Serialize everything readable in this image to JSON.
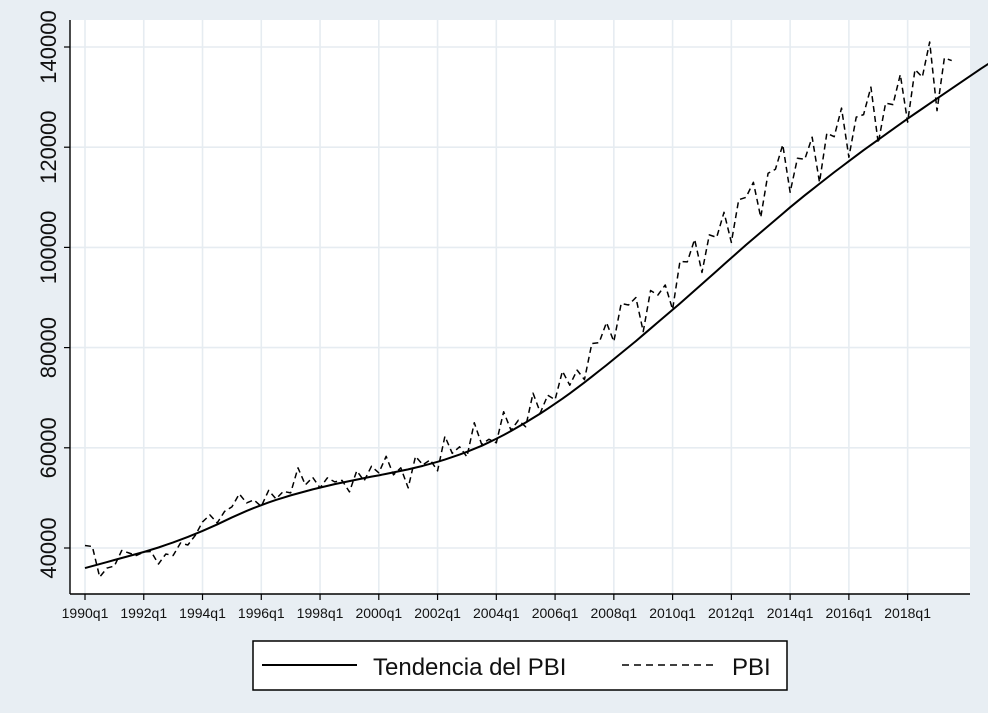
{
  "chart_data": {
    "type": "line",
    "title": "",
    "xlabel": "",
    "ylabel": "",
    "x_tick_labels": [
      "1990q1",
      "1992q1",
      "1994q1",
      "1996q1",
      "1998q1",
      "2000q1",
      "2002q1",
      "2004q1",
      "2006q1",
      "2008q1",
      "2010q1",
      "2012q1",
      "2014q1",
      "2016q1",
      "2018q1"
    ],
    "y_tick_labels": [
      "40000",
      "60000",
      "80000",
      "100000",
      "120000",
      "140000"
    ],
    "y_ticks": [
      40000,
      60000,
      80000,
      100000,
      120000,
      140000
    ],
    "ylim": [
      33000,
      141500
    ],
    "x_start": "1990q1",
    "x_end": "2019q2",
    "grid": true,
    "legend_position": "bottom",
    "series": [
      {
        "name": "Tendencia del PBI",
        "style": "solid",
        "color": "#000000",
        "values": [
          36000,
          36400,
          36800,
          37200,
          37600,
          38000,
          38400,
          38800,
          39200,
          39650,
          40100,
          40600,
          41100,
          41650,
          42200,
          42800,
          43400,
          44050,
          44700,
          45400,
          46100,
          46750,
          47400,
          48000,
          48550,
          49100,
          49600,
          50050,
          50500,
          50900,
          51300,
          51700,
          52050,
          52400,
          52750,
          53050,
          53350,
          53650,
          53950,
          54250,
          54500,
          54800,
          55100,
          55400,
          55700,
          56050,
          56400,
          56800,
          57200,
          57650,
          58150,
          58650,
          59200,
          59800,
          60400,
          61100,
          61800,
          62550,
          63350,
          64200,
          65050,
          65950,
          66850,
          67800,
          68800,
          69800,
          70850,
          71950,
          73050,
          74200,
          75350,
          76500,
          77700,
          78900,
          80100,
          81300,
          82550,
          83800,
          85050,
          86300,
          87550,
          88800,
          90100,
          91400,
          92700,
          94000,
          95300,
          96600,
          97900,
          99200,
          100500,
          101750,
          103000,
          104250,
          105500,
          106750,
          108000,
          109200,
          110400,
          111550,
          112700,
          113850,
          115000,
          116100,
          117200,
          118300,
          119400,
          120450,
          121500,
          122550,
          123600,
          124650,
          125700,
          126700,
          127700,
          128700,
          129700,
          130700,
          131700,
          132700,
          133700,
          134700,
          135700,
          136650,
          137600
        ]
      },
      {
        "name": "PBI",
        "style": "dashed",
        "color": "#000000",
        "values": [
          40500,
          40300,
          34200,
          36000,
          36400,
          39500,
          39000,
          38500,
          39200,
          39300,
          36800,
          38800,
          38500,
          41000,
          40600,
          42500,
          45200,
          46600,
          45000,
          47300,
          48200,
          50800,
          49000,
          49600,
          48300,
          51500,
          49800,
          51300,
          51000,
          56000,
          52600,
          54100,
          52000,
          54000,
          53200,
          53500,
          51200,
          55400,
          53400,
          56300,
          55000,
          58300,
          54600,
          56000,
          52000,
          58300,
          56600,
          57600,
          55400,
          62300,
          58900,
          60200,
          58200,
          65000,
          60700,
          61700,
          61000,
          67200,
          63500,
          65500,
          64200,
          70900,
          67000,
          70500,
          69600,
          75300,
          72500,
          75500,
          73600,
          80800,
          81000,
          85000,
          81200,
          88800,
          88500,
          90000,
          83200,
          91400,
          90500,
          92500,
          87600,
          97200,
          97100,
          101600,
          95000,
          102500,
          102000,
          107000,
          101000,
          109500,
          110000,
          113000,
          106000,
          114800,
          115600,
          120500,
          111000,
          117800,
          117600,
          122000,
          113000,
          122800,
          122100,
          127800,
          118000,
          126000,
          126500,
          132000,
          120800,
          128800,
          128500,
          134500,
          125000,
          135500,
          134000,
          141000,
          127300,
          137800,
          137300
        ]
      }
    ]
  }
}
